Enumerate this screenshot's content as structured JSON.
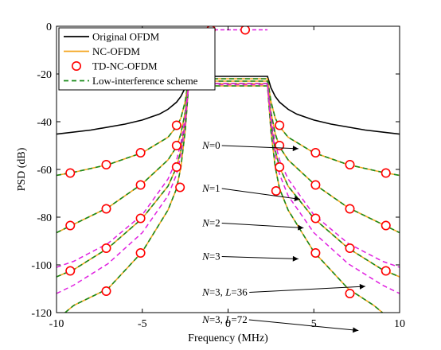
{
  "chart_data": {
    "type": "line",
    "xlabel": "Frequency (MHz)",
    "ylabel": "PSD (dB)",
    "xlim": [
      -10,
      10
    ],
    "ylim": [
      -120,
      0
    ],
    "xticks": [
      -10,
      -5,
      0,
      5,
      10
    ],
    "yticks": [
      0,
      -20,
      -40,
      -60,
      -80,
      -100,
      -120
    ],
    "grid": false,
    "legend_position": "top-left",
    "legend": [
      {
        "name": "Original OFDM",
        "style": "solid",
        "color": "#000000",
        "marker": "none"
      },
      {
        "name": "NC-OFDM",
        "style": "solid",
        "color": "#f5a623",
        "marker": "none"
      },
      {
        "name": "TD-NC-OFDM",
        "style": "none",
        "color": "#ff0000",
        "marker": "circle"
      },
      {
        "name": "Low-interference scheme",
        "style": "dashed",
        "color": "#1a8a1a",
        "marker": "none"
      }
    ],
    "series": [
      {
        "key": "orig",
        "legend": "Original OFDM",
        "x": [
          -10,
          -8,
          -6,
          -5,
          -4,
          -3.5,
          -3,
          -2.75,
          -2.5,
          -2.3,
          2.3,
          2.5,
          2.75,
          3,
          3.5,
          4,
          5,
          6,
          8,
          10
        ],
        "y": [
          -45.2,
          -43.5,
          -41,
          -39.3,
          -36.8,
          -34.8,
          -31.8,
          -29.4,
          -25.8,
          -21,
          -21,
          -25.8,
          -29.4,
          -31.8,
          -34.8,
          -36.8,
          -39.3,
          -41,
          -43.5,
          -45.2
        ]
      },
      {
        "key": "nc0",
        "legend": "NC-OFDM",
        "label": "N=0",
        "x": [
          -10,
          -9,
          -7,
          -5,
          -3.5,
          -3,
          -2.75,
          -2.5,
          -2.3,
          2.3,
          2.5,
          2.75,
          3,
          3.5,
          5,
          7,
          9,
          10
        ],
        "y": [
          -62.5,
          -61.2,
          -58,
          -53,
          -46.5,
          -42,
          -38.5,
          -31.5,
          -22,
          -22,
          -31.5,
          -38.5,
          -42,
          -46.5,
          -53,
          -58,
          -61.2,
          -62.5
        ]
      },
      {
        "key": "nc1",
        "legend": "NC-OFDM",
        "label": "N=1",
        "x": [
          -10,
          -9,
          -7,
          -5,
          -3.5,
          -3,
          -2.75,
          -2.5,
          -2.3,
          2.3,
          2.5,
          2.75,
          3,
          3.5,
          5,
          7,
          9,
          10
        ],
        "y": [
          -86.5,
          -83,
          -76,
          -66,
          -56,
          -50.5,
          -45,
          -36,
          -23,
          -23,
          -36,
          -45,
          -50.5,
          -56,
          -66,
          -76,
          -83,
          -86.5
        ]
      },
      {
        "key": "nc2",
        "legend": "NC-OFDM",
        "label": "N=2",
        "x": [
          -10,
          -9,
          -7,
          -5,
          -3.5,
          -3,
          -2.75,
          -2.5,
          -2.3,
          2.3,
          2.5,
          2.75,
          3,
          3.5,
          5,
          7,
          9,
          10
        ],
        "y": [
          -105,
          -102,
          -93,
          -80.5,
          -67,
          -59,
          -52,
          -40,
          -24,
          -24,
          -40,
          -52,
          -59,
          -67,
          -80.5,
          -93,
          -102,
          -105
        ]
      },
      {
        "key": "nc3",
        "legend": "NC-OFDM",
        "label": "N=3",
        "x": [
          -9.5,
          -9,
          -7,
          -5,
          -3.5,
          -3,
          -2.75,
          -2.5,
          -2.3,
          2.3,
          2.5,
          2.75,
          3,
          3.5,
          5,
          7,
          8.5,
          9
        ],
        "y": [
          -120,
          -117,
          -110,
          -94.5,
          -77,
          -68,
          -59,
          -44,
          -25,
          -25,
          -44,
          -59,
          -68,
          -77,
          -94.5,
          -110,
          -117,
          -120
        ]
      },
      {
        "key": "l36",
        "legend": "Low-interference scheme",
        "label": "N=3, L=36",
        "style": "dashed",
        "color": "#e020e0",
        "x": [
          -10,
          -9,
          -7,
          -5,
          -3.5,
          -3,
          -2.75,
          -2.5,
          -2.3,
          2.3,
          2.5,
          2.75,
          3,
          3.5,
          5,
          7,
          9,
          10
        ],
        "y": [
          -101,
          -98.5,
          -91,
          -79,
          -64,
          -56,
          -49,
          -38,
          -24,
          -24,
          -38,
          -49,
          -56,
          -64,
          -79,
          -91,
          -98.5,
          -101
        ]
      },
      {
        "key": "l72",
        "legend": "Low-interference scheme",
        "label": "N=3, L=72",
        "style": "dashed",
        "color": "#e020e0",
        "x": [
          -10,
          -9,
          -7,
          -5,
          -3.5,
          -3,
          -2.75,
          -2.5,
          -2.3,
          2.3,
          2.5,
          2.75,
          3,
          3.5,
          5,
          7,
          9,
          10
        ],
        "y": [
          -112,
          -108.5,
          -99.5,
          -86.5,
          -71,
          -62,
          -54,
          -41,
          -24.5,
          -24.5,
          -41,
          -54,
          -62,
          -71,
          -86.5,
          -99.5,
          -108.5,
          -112
        ]
      }
    ],
    "passband": {
      "x": [
        -2.3,
        -1.9,
        1.9,
        2.3
      ],
      "y": [
        -1.5,
        -1.5,
        -1.5,
        -1.5
      ]
    },
    "markers": {
      "legend": "TD-NC-OFDM",
      "points": [
        [
          -1,
          -1.5
        ],
        [
          1,
          -1.5
        ],
        [
          -9.2,
          -61.5
        ],
        [
          -7.1,
          -58
        ],
        [
          -5.1,
          -53
        ],
        [
          -3.0,
          -41.5
        ],
        [
          3.0,
          -41.5
        ],
        [
          5.1,
          -53
        ],
        [
          7.1,
          -58
        ],
        [
          9.2,
          -61.5
        ],
        [
          -9.2,
          -83.5
        ],
        [
          -7.1,
          -76.5
        ],
        [
          -5.1,
          -66.5
        ],
        [
          -3.0,
          -50
        ],
        [
          3.0,
          -50
        ],
        [
          5.1,
          -66.5
        ],
        [
          7.1,
          -76.5
        ],
        [
          9.2,
          -83.5
        ],
        [
          -9.2,
          -102.5
        ],
        [
          -7.1,
          -93
        ],
        [
          -5.1,
          -80.5
        ],
        [
          -3.0,
          -59
        ],
        [
          3.0,
          -59
        ],
        [
          5.1,
          -80.5
        ],
        [
          7.1,
          -93
        ],
        [
          9.2,
          -102.5
        ],
        [
          -7.1,
          -111
        ],
        [
          -5.1,
          -95
        ],
        [
          -2.8,
          -67.5
        ],
        [
          2.8,
          -69
        ],
        [
          5.1,
          -95
        ],
        [
          7.1,
          -112
        ]
      ]
    },
    "annotations": [
      {
        "text": "N=0",
        "italic": "N",
        "rest": "=0",
        "text_at": [
          -1.5,
          -50
        ],
        "arrow_to": [
          4.1,
          -51.3
        ]
      },
      {
        "text": "N=1",
        "italic": "N",
        "rest": "=1",
        "text_at": [
          -1.5,
          -68
        ],
        "arrow_to": [
          4.2,
          -72.5
        ]
      },
      {
        "text": "N=2",
        "italic": "N",
        "rest": "=2",
        "text_at": [
          -1.5,
          -82.5
        ],
        "arrow_to": [
          4.4,
          -84.5
        ]
      },
      {
        "text": "N=3",
        "italic": "N",
        "rest": "=3",
        "text_at": [
          -1.5,
          -96.5
        ],
        "arrow_to": [
          4.1,
          -97.5
        ]
      },
      {
        "text": "N=3, L=36",
        "parts": [
          [
            "N",
            true
          ],
          [
            "=3, ",
            false
          ],
          [
            "L",
            true
          ],
          [
            "=36",
            false
          ]
        ],
        "text_at": [
          -1.5,
          -111.5
        ],
        "arrow_to": [
          8.0,
          -109
        ]
      },
      {
        "text": "N=3, L=72",
        "parts": [
          [
            "N",
            true
          ],
          [
            "=3, ",
            false
          ],
          [
            "L",
            true
          ],
          [
            "=72",
            false
          ]
        ],
        "text_at": [
          -1.5,
          -123
        ],
        "arrow_to": [
          7.6,
          -127.5
        ]
      }
    ]
  }
}
